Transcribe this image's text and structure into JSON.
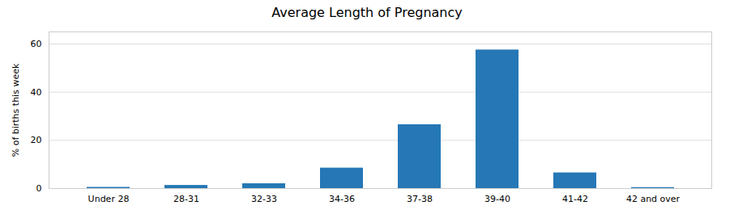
{
  "chart_data": {
    "type": "bar",
    "title": "Average Length of Pregnancy",
    "ylabel": "% of births this week",
    "categories": [
      "Under 28",
      "28-31",
      "32-33",
      "34-36",
      "37-38",
      "39-40",
      "41-42",
      "42 and over"
    ],
    "values": [
      0.5,
      1.3,
      2.0,
      8.5,
      26.5,
      57.5,
      6.5,
      0.4
    ],
    "color": "#2578b5",
    "ylim": [
      0,
      65
    ],
    "yticks": [
      0,
      20,
      40,
      60
    ],
    "grid": true
  }
}
